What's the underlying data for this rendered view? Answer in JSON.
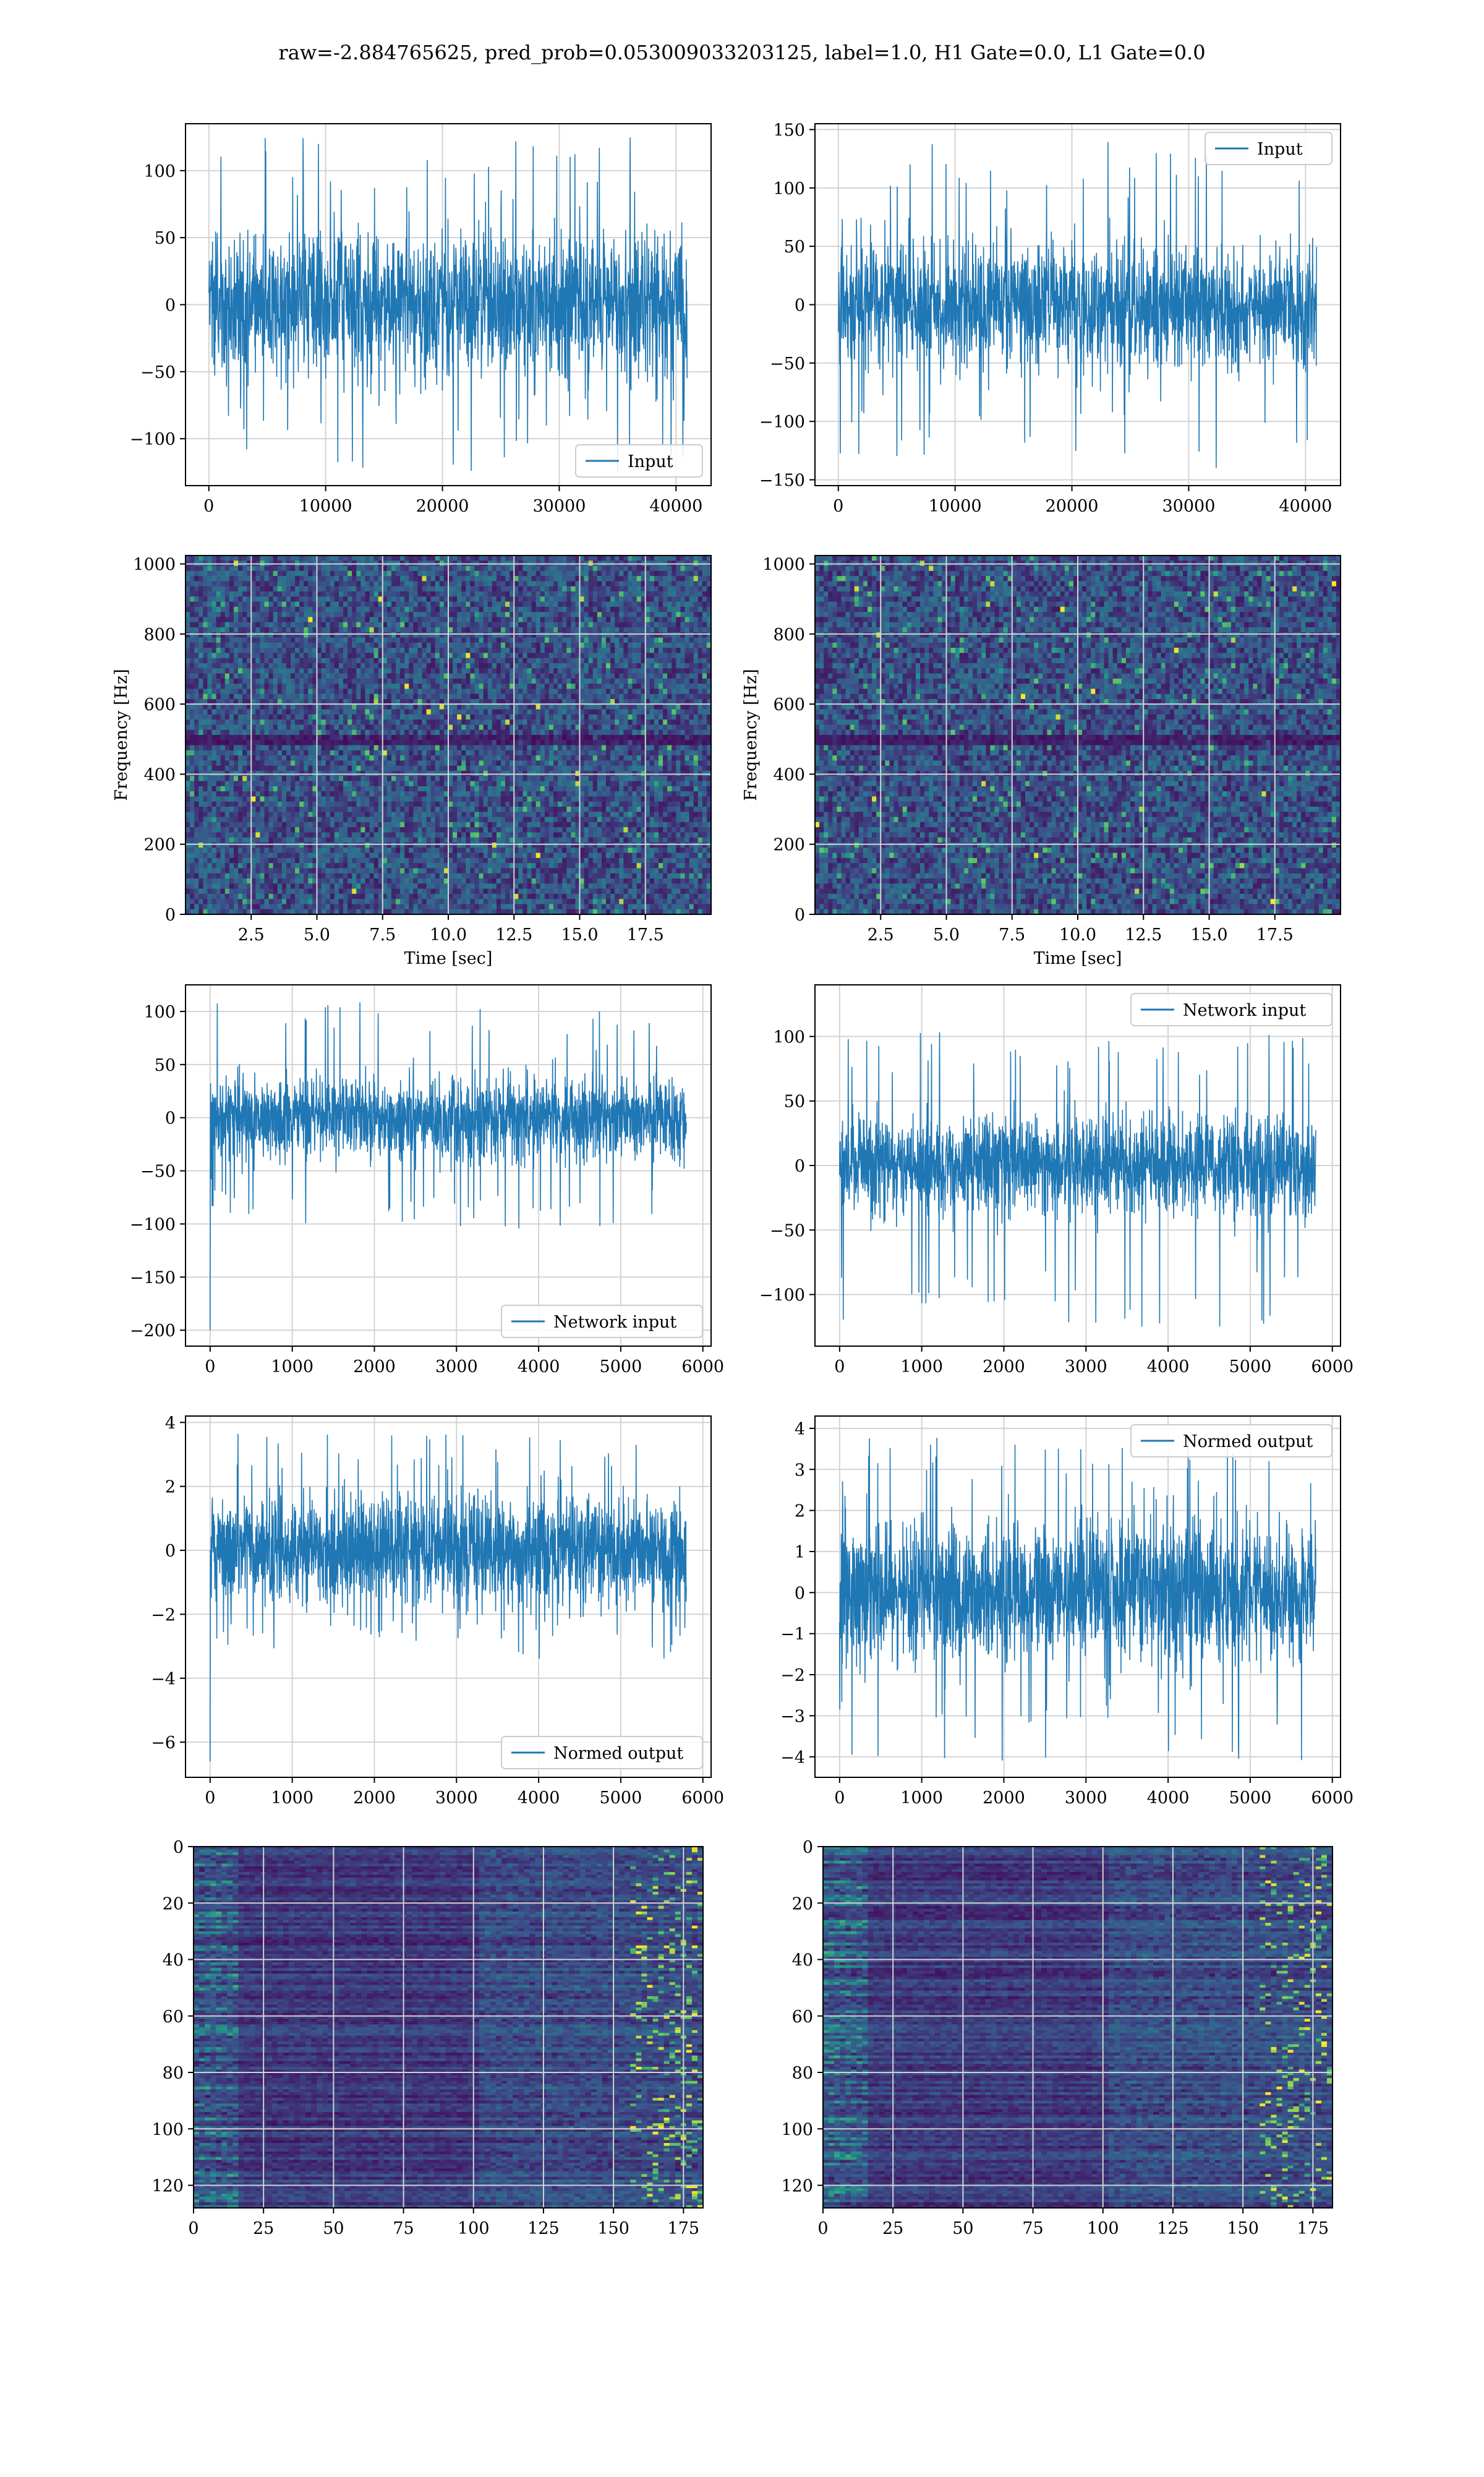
{
  "figure": {
    "suptitle": "raw=-2.884765625, pred_prob=0.053009033203125, label=1.0, H1 Gate=0.0, L1 Gate=0.0"
  },
  "colors": {
    "line": "#1f77b4",
    "grid": "#d3d3d3",
    "viridis_dark": "#440154",
    "viridis_mid": "#21918c",
    "viridis_bright": "#fde725"
  },
  "chart_data": [
    {
      "id": "p1",
      "type": "line",
      "legend_loc": "lower-right",
      "grid": true,
      "series": [
        {
          "name": "Input",
          "n_points": 40960,
          "amplitude_core": 65,
          "amplitude_peaks": [
            -125,
            125
          ]
        }
      ],
      "xlim": [
        -2000,
        43000
      ],
      "ylim": [
        -135,
        135
      ],
      "xticks": [
        0,
        10000,
        20000,
        30000,
        40000
      ],
      "xticklabels": [
        "0",
        "10000",
        "20000",
        "30000",
        "40000"
      ],
      "yticks": [
        -100,
        -50,
        0,
        50,
        100
      ],
      "yticklabels": [
        "−100",
        "−50",
        "0",
        "50",
        "100"
      ]
    },
    {
      "id": "p2",
      "type": "line",
      "legend_loc": "upper-right",
      "grid": true,
      "series": [
        {
          "name": "Input",
          "n_points": 40960,
          "amplitude_core": 65,
          "amplitude_peaks": [
            -140,
            140
          ]
        }
      ],
      "xlim": [
        -2000,
        43000
      ],
      "ylim": [
        -155,
        155
      ],
      "xticks": [
        0,
        10000,
        20000,
        30000,
        40000
      ],
      "xticklabels": [
        "0",
        "10000",
        "20000",
        "30000",
        "40000"
      ],
      "yticks": [
        -150,
        -100,
        -50,
        0,
        50,
        100,
        150
      ],
      "yticklabels": [
        "−150",
        "−100",
        "−50",
        "0",
        "50",
        "100",
        "150"
      ]
    },
    {
      "id": "p3",
      "type": "heatmap",
      "grid": true,
      "xlabel": "Time [sec]",
      "ylabel": "Frequency [Hz]",
      "xlim": [
        0,
        20
      ],
      "ylim": [
        0,
        1024
      ],
      "xticks": [
        2.5,
        5.0,
        7.5,
        10.0,
        12.5,
        15.0,
        17.5
      ],
      "xticklabels": [
        "2.5",
        "5.0",
        "7.5",
        "10.0",
        "12.5",
        "15.0",
        "17.5"
      ],
      "yticks": [
        0,
        200,
        400,
        600,
        800,
        1000
      ],
      "yticklabels": [
        "0",
        "200",
        "400",
        "600",
        "800",
        "1000"
      ]
    },
    {
      "id": "p4",
      "type": "heatmap",
      "grid": true,
      "xlabel": "Time [sec]",
      "ylabel": "Frequency [Hz]",
      "xlim": [
        0,
        20
      ],
      "ylim": [
        0,
        1024
      ],
      "xticks": [
        2.5,
        5.0,
        7.5,
        10.0,
        12.5,
        15.0,
        17.5
      ],
      "xticklabels": [
        "2.5",
        "5.0",
        "7.5",
        "10.0",
        "12.5",
        "15.0",
        "17.5"
      ],
      "yticks": [
        0,
        200,
        400,
        600,
        800,
        1000
      ],
      "yticklabels": [
        "0",
        "200",
        "400",
        "600",
        "800",
        "1000"
      ]
    },
    {
      "id": "p5",
      "type": "line",
      "legend_loc": "lower-right",
      "grid": true,
      "series": [
        {
          "name": "Network input",
          "n_points": 5800,
          "amplitude_core": 45,
          "amplitude_peaks": [
            -105,
            110
          ],
          "initial_spike": -200
        }
      ],
      "xlim": [
        -300,
        6100
      ],
      "ylim": [
        -215,
        125
      ],
      "xticks": [
        0,
        1000,
        2000,
        3000,
        4000,
        5000,
        6000
      ],
      "xticklabels": [
        "0",
        "1000",
        "2000",
        "3000",
        "4000",
        "5000",
        "6000"
      ],
      "yticks": [
        -200,
        -150,
        -100,
        -50,
        0,
        50,
        100
      ],
      "yticklabels": [
        "−200",
        "−150",
        "−100",
        "−50",
        "0",
        "50",
        "100"
      ]
    },
    {
      "id": "p6",
      "type": "line",
      "legend_loc": "upper-right",
      "grid": true,
      "series": [
        {
          "name": "Network input",
          "n_points": 5800,
          "amplitude_core": 45,
          "amplitude_peaks": [
            -125,
            105
          ]
        }
      ],
      "xlim": [
        -300,
        6100
      ],
      "ylim": [
        -140,
        140
      ],
      "xticks": [
        0,
        1000,
        2000,
        3000,
        4000,
        5000,
        6000
      ],
      "xticklabels": [
        "0",
        "1000",
        "2000",
        "3000",
        "4000",
        "5000",
        "6000"
      ],
      "yticks": [
        -100,
        -50,
        0,
        50,
        100
      ],
      "yticklabels": [
        "−100",
        "−50",
        "0",
        "50",
        "100"
      ]
    },
    {
      "id": "p7",
      "type": "line",
      "legend_loc": "lower-right",
      "grid": true,
      "series": [
        {
          "name": "Normed output",
          "n_points": 5800,
          "amplitude_core": 2.0,
          "amplitude_peaks": [
            -3.5,
            3.7
          ],
          "initial_spike": -6.6
        }
      ],
      "xlim": [
        -300,
        6100
      ],
      "ylim": [
        -7.1,
        4.2
      ],
      "xticks": [
        0,
        1000,
        2000,
        3000,
        4000,
        5000,
        6000
      ],
      "xticklabels": [
        "0",
        "1000",
        "2000",
        "3000",
        "4000",
        "5000",
        "6000"
      ],
      "yticks": [
        -6,
        -4,
        -2,
        0,
        2,
        4
      ],
      "yticklabels": [
        "−6",
        "−4",
        "−2",
        "0",
        "2",
        "4"
      ]
    },
    {
      "id": "p8",
      "type": "line",
      "legend_loc": "upper-right",
      "grid": true,
      "series": [
        {
          "name": "Normed output",
          "n_points": 5800,
          "amplitude_core": 2.0,
          "amplitude_peaks": [
            -4.1,
            3.9
          ]
        }
      ],
      "xlim": [
        -300,
        6100
      ],
      "ylim": [
        -4.5,
        4.3
      ],
      "xticks": [
        0,
        1000,
        2000,
        3000,
        4000,
        5000,
        6000
      ],
      "xticklabels": [
        "0",
        "1000",
        "2000",
        "3000",
        "4000",
        "5000",
        "6000"
      ],
      "yticks": [
        -4,
        -3,
        -2,
        -1,
        0,
        1,
        2,
        3,
        4
      ],
      "yticklabels": [
        "−4",
        "−3",
        "−2",
        "−1",
        "0",
        "1",
        "2",
        "3",
        "4"
      ]
    },
    {
      "id": "p9",
      "type": "heatmap",
      "grid": true,
      "xlim": [
        0,
        182
      ],
      "ylim": [
        128,
        0
      ],
      "xticks": [
        0,
        25,
        50,
        75,
        100,
        125,
        150,
        175
      ],
      "xticklabels": [
        "0",
        "25",
        "50",
        "75",
        "100",
        "125",
        "150",
        "175"
      ],
      "yticks": [
        0,
        20,
        40,
        60,
        80,
        100,
        120
      ],
      "yticklabels": [
        "0",
        "20",
        "40",
        "60",
        "80",
        "100",
        "120"
      ]
    },
    {
      "id": "p10",
      "type": "heatmap",
      "grid": true,
      "xlim": [
        0,
        182
      ],
      "ylim": [
        128,
        0
      ],
      "xticks": [
        0,
        25,
        50,
        75,
        100,
        125,
        150,
        175
      ],
      "xticklabels": [
        "0",
        "25",
        "50",
        "75",
        "100",
        "125",
        "150",
        "175"
      ],
      "yticks": [
        0,
        20,
        40,
        60,
        80,
        100,
        120
      ],
      "yticklabels": [
        "0",
        "20",
        "40",
        "60",
        "80",
        "100",
        "120"
      ]
    }
  ]
}
